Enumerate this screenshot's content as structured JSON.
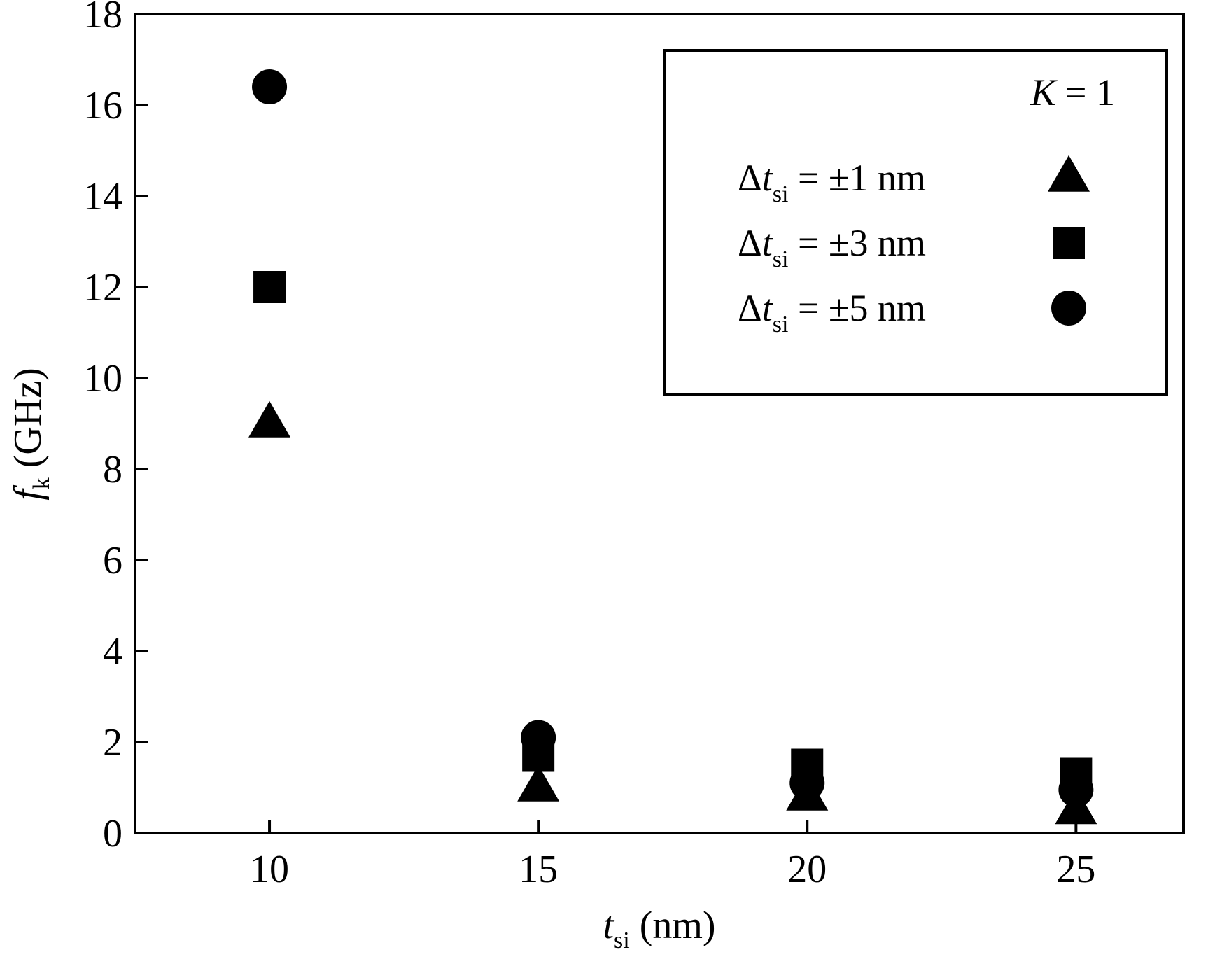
{
  "chart_data": {
    "type": "scatter",
    "x": [
      10,
      15,
      20,
      25
    ],
    "xlim": [
      7.5,
      27
    ],
    "ylim": [
      0,
      18
    ],
    "xticks": [
      10,
      15,
      20,
      25
    ],
    "yticks": [
      0,
      2,
      4,
      6,
      8,
      10,
      12,
      14,
      16,
      18
    ],
    "xlabel": {
      "main": "t",
      "sub": "si",
      "unit": " (nm)"
    },
    "ylabel": {
      "main": "f",
      "sub": "k",
      "unit": " (GHz)"
    },
    "grid": false,
    "legend_position": "top-right",
    "legend_title": {
      "main": "K",
      "rest": " = 1"
    },
    "series": [
      {
        "name": "Δt_si = ±1 nm",
        "label_main": "Δt",
        "label_sub": "si",
        "label_rest": " = ±1 nm",
        "marker": "triangle",
        "values": [
          9.0,
          1.0,
          0.8,
          0.5
        ]
      },
      {
        "name": "Δt_si = ±3 nm",
        "label_main": "Δt",
        "label_sub": "si",
        "label_rest": " = ±3 nm",
        "marker": "square",
        "values": [
          12.0,
          1.7,
          1.5,
          1.3
        ]
      },
      {
        "name": "Δt_si = ±5 nm",
        "label_main": "Δt",
        "label_sub": "si",
        "label_rest": " = ±5 nm",
        "marker": "circle",
        "values": [
          16.4,
          2.1,
          1.1,
          0.95
        ]
      }
    ],
    "colors": {
      "marker": "#000000",
      "axis": "#000000",
      "background": "#ffffff"
    }
  }
}
